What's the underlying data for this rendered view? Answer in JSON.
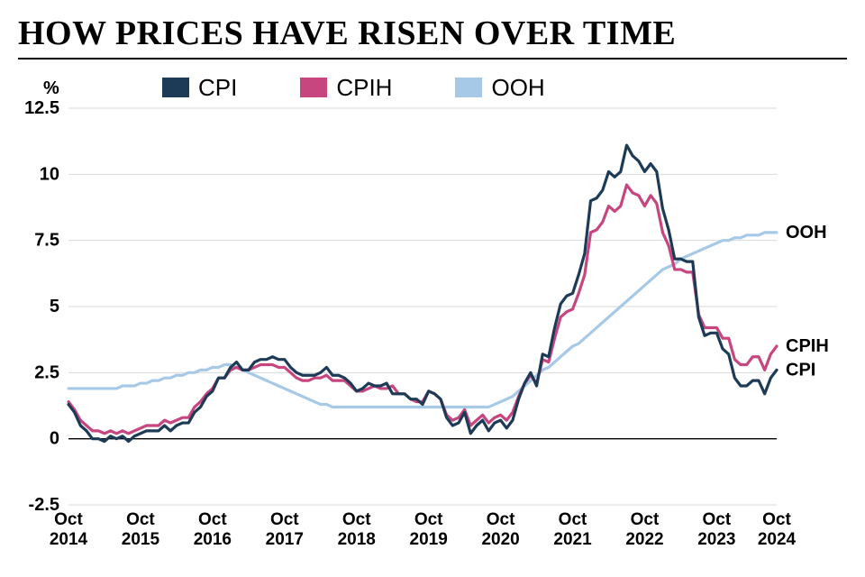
{
  "title": "HOW PRICES HAVE RISEN OVER TIME",
  "title_fontsize": 38,
  "y_axis_label": "%",
  "y_axis_label_fontsize": 20,
  "chart": {
    "type": "line",
    "background_color": "#ffffff",
    "grid_color": "#d9d9d9",
    "axis_color": "#000000",
    "ylim": [
      -2.5,
      12.5
    ],
    "yticks": [
      -2.5,
      0,
      2.5,
      5,
      7.5,
      10,
      12.5
    ],
    "x_start_year": 2014,
    "x_start_month": 10,
    "x_end_year": 2024,
    "x_end_month": 10,
    "xtick_labels": [
      [
        "Oct",
        "2014"
      ],
      [
        "Oct",
        "2015"
      ],
      [
        "Oct",
        "2016"
      ],
      [
        "Oct",
        "2017"
      ],
      [
        "Oct",
        "2018"
      ],
      [
        "Oct",
        "2019"
      ],
      [
        "Oct",
        "2020"
      ],
      [
        "Oct",
        "2021"
      ],
      [
        "Oct",
        "2022"
      ],
      [
        "Oct",
        "2023"
      ],
      [
        "Oct",
        "2024"
      ]
    ],
    "tick_fontsize": 20,
    "line_width": 3.2,
    "legend_fontsize": 26,
    "end_label_fontsize": 20,
    "series": [
      {
        "name": "CPI",
        "color": "#1d3a56",
        "end_label": "CPI",
        "values": [
          1.3,
          1.0,
          0.5,
          0.3,
          0.0,
          0.0,
          -0.1,
          0.1,
          0.0,
          0.1,
          -0.1,
          0.1,
          0.2,
          0.3,
          0.3,
          0.3,
          0.5,
          0.3,
          0.5,
          0.6,
          0.6,
          1.0,
          1.2,
          1.6,
          1.8,
          2.3,
          2.3,
          2.7,
          2.9,
          2.6,
          2.6,
          2.9,
          3.0,
          3.0,
          3.1,
          3.0,
          3.0,
          2.7,
          2.5,
          2.4,
          2.4,
          2.4,
          2.5,
          2.7,
          2.4,
          2.4,
          2.3,
          2.1,
          1.8,
          1.9,
          2.1,
          2.0,
          2.0,
          2.1,
          1.7,
          1.7,
          1.7,
          1.5,
          1.5,
          1.3,
          1.8,
          1.7,
          1.5,
          0.8,
          0.5,
          0.6,
          1.0,
          0.2,
          0.5,
          0.7,
          0.3,
          0.6,
          0.7,
          0.4,
          0.7,
          1.5,
          2.1,
          2.5,
          2.0,
          3.2,
          3.1,
          4.2,
          5.1,
          5.4,
          5.5,
          6.2,
          7.0,
          9.0,
          9.1,
          9.4,
          10.1,
          9.9,
          10.1,
          11.1,
          10.7,
          10.5,
          10.1,
          10.4,
          10.1,
          8.7,
          7.9,
          6.8,
          6.8,
          6.7,
          6.7,
          4.6,
          3.9,
          4.0,
          4.0,
          3.4,
          3.2,
          2.3,
          2.0,
          2.0,
          2.2,
          2.2,
          1.7,
          2.3,
          2.6
        ]
      },
      {
        "name": "CPIH",
        "color": "#c7467f",
        "end_label": "CPIH",
        "values": [
          1.4,
          1.1,
          0.7,
          0.5,
          0.3,
          0.3,
          0.2,
          0.3,
          0.2,
          0.3,
          0.2,
          0.3,
          0.4,
          0.5,
          0.5,
          0.5,
          0.7,
          0.6,
          0.7,
          0.8,
          0.8,
          1.2,
          1.4,
          1.7,
          1.9,
          2.3,
          2.3,
          2.6,
          2.7,
          2.6,
          2.6,
          2.7,
          2.8,
          2.8,
          2.8,
          2.7,
          2.7,
          2.5,
          2.3,
          2.2,
          2.2,
          2.3,
          2.3,
          2.4,
          2.2,
          2.2,
          2.2,
          2.0,
          1.8,
          1.8,
          1.9,
          2.0,
          1.9,
          1.9,
          2.0,
          1.7,
          1.7,
          1.5,
          1.4,
          1.4,
          1.8,
          1.7,
          1.5,
          0.9,
          0.7,
          0.8,
          1.1,
          0.5,
          0.7,
          0.9,
          0.6,
          0.8,
          0.9,
          0.7,
          1.0,
          1.6,
          2.1,
          2.4,
          2.1,
          3.0,
          2.9,
          3.8,
          4.6,
          4.8,
          4.9,
          5.5,
          6.2,
          7.8,
          7.9,
          8.2,
          8.8,
          8.6,
          8.8,
          9.6,
          9.3,
          9.2,
          8.8,
          9.2,
          8.9,
          7.8,
          7.3,
          6.4,
          6.4,
          6.3,
          6.3,
          4.7,
          4.2,
          4.2,
          4.2,
          3.8,
          3.8,
          3.0,
          2.8,
          2.8,
          3.1,
          3.1,
          2.6,
          3.2,
          3.5
        ]
      },
      {
        "name": "OOH",
        "color": "#a7c9e8",
        "end_label": "OOH",
        "values": [
          1.9,
          1.9,
          1.9,
          1.9,
          1.9,
          1.9,
          1.9,
          1.9,
          1.9,
          2.0,
          2.0,
          2.0,
          2.1,
          2.1,
          2.2,
          2.2,
          2.3,
          2.3,
          2.4,
          2.4,
          2.5,
          2.5,
          2.6,
          2.6,
          2.7,
          2.7,
          2.8,
          2.8,
          2.7,
          2.6,
          2.5,
          2.4,
          2.3,
          2.2,
          2.1,
          2.0,
          1.9,
          1.8,
          1.7,
          1.6,
          1.5,
          1.4,
          1.3,
          1.3,
          1.2,
          1.2,
          1.2,
          1.2,
          1.2,
          1.2,
          1.2,
          1.2,
          1.2,
          1.2,
          1.2,
          1.2,
          1.2,
          1.2,
          1.2,
          1.2,
          1.2,
          1.2,
          1.2,
          1.2,
          1.2,
          1.2,
          1.2,
          1.2,
          1.2,
          1.2,
          1.2,
          1.3,
          1.4,
          1.5,
          1.6,
          1.8,
          2.0,
          2.2,
          2.4,
          2.6,
          2.7,
          2.9,
          3.1,
          3.3,
          3.5,
          3.6,
          3.8,
          4.0,
          4.2,
          4.4,
          4.6,
          4.8,
          5.0,
          5.2,
          5.4,
          5.6,
          5.8,
          6.0,
          6.2,
          6.4,
          6.5,
          6.6,
          6.8,
          6.9,
          7.0,
          7.1,
          7.2,
          7.3,
          7.4,
          7.5,
          7.5,
          7.6,
          7.6,
          7.7,
          7.7,
          7.7,
          7.8,
          7.8,
          7.8
        ]
      }
    ]
  }
}
